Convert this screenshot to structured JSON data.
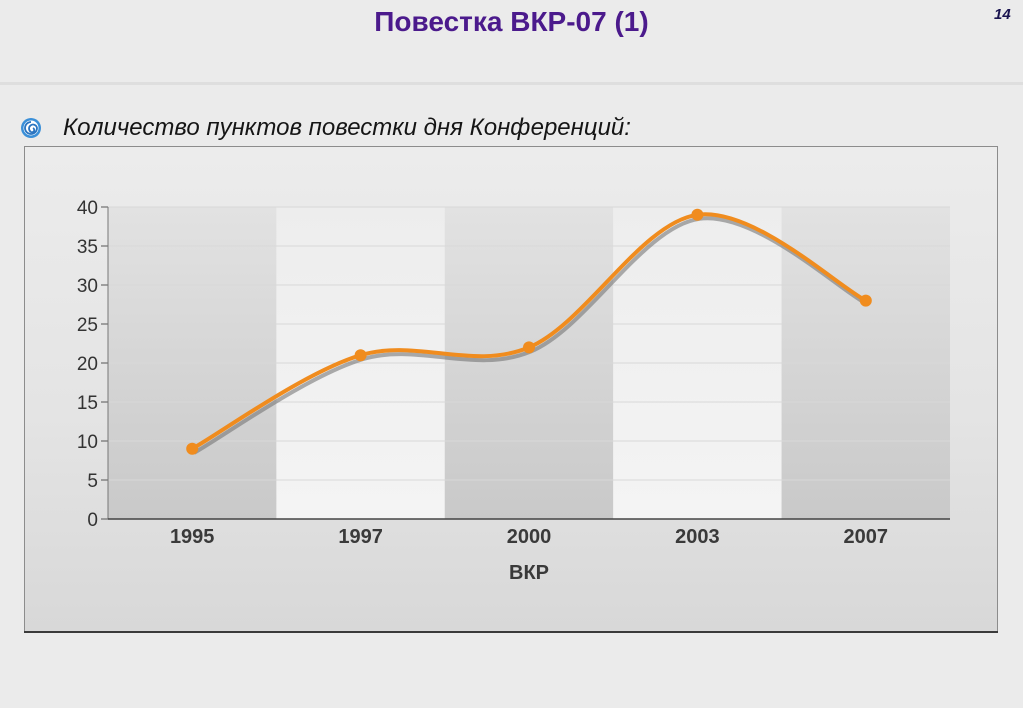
{
  "slide": {
    "title": "Повестка ВКР-07 (1)",
    "page_number": "14",
    "bullet_text": "Количество пунктов повестки дня Конференций:",
    "bullet_icon": "swirl-bullet-icon"
  },
  "colors": {
    "title": "#4b1a8c",
    "line": "#f08c1e",
    "line_shadow": "#6e6e6e",
    "band_dark": "#c9c9c9",
    "band_light": "#f4f4f4"
  },
  "chart_data": {
    "type": "line",
    "categories": [
      "1995",
      "1997",
      "2000",
      "2003",
      "2007"
    ],
    "values": [
      9,
      21,
      22,
      39,
      28
    ],
    "xlabel": "ВКР",
    "ylabel": "",
    "ylim": [
      0,
      40
    ],
    "yticks": [
      "0",
      "5",
      "10",
      "15",
      "20",
      "25",
      "30",
      "35",
      "40"
    ],
    "smooth": true,
    "grid": true,
    "legend": "none"
  }
}
